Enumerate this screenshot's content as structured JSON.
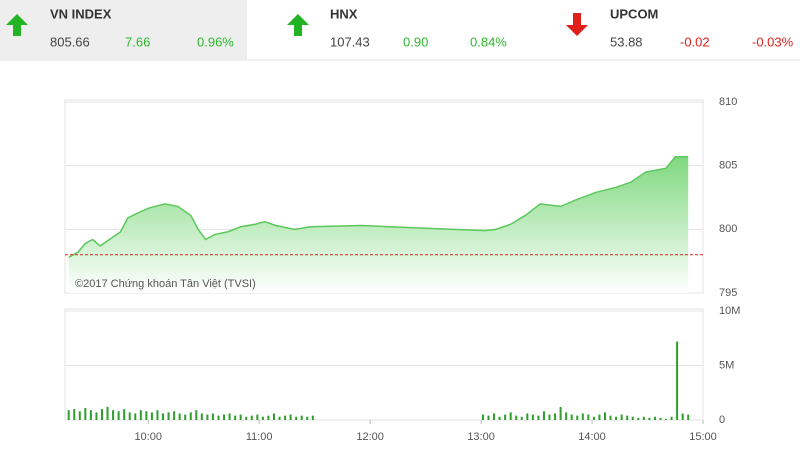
{
  "header": {
    "indices": [
      {
        "name": "VN INDEX",
        "value": "805.66",
        "change": "7.66",
        "percent": "0.96%",
        "direction": "up"
      },
      {
        "name": "HNX",
        "value": "107.43",
        "change": "0.90",
        "percent": "0.84%",
        "direction": "up"
      },
      {
        "name": "UPCOM",
        "value": "53.88",
        "change": "-0.02",
        "percent": "-0.03%",
        "direction": "down"
      }
    ]
  },
  "chart_data": [
    {
      "type": "area",
      "annotation": "©2017 Chứng khoán Tân Việt (TVSI)",
      "color": "#5cc85c",
      "reference_line": 798,
      "reference_color": "#d9261c",
      "x": [
        557,
        562,
        566,
        570,
        574,
        579,
        585,
        589,
        596,
        601,
        609,
        616,
        623,
        627,
        631,
        636,
        643,
        650,
        658,
        663,
        669,
        679,
        688,
        715,
        747,
        782,
        788,
        796,
        804,
        812,
        823,
        831,
        842,
        853,
        861,
        869,
        880,
        885,
        892
      ],
      "values": [
        797.8,
        798.2,
        798.9,
        799.2,
        798.7,
        799.2,
        799.8,
        800.9,
        801.4,
        801.7,
        802.0,
        801.8,
        801.1,
        800.0,
        799.2,
        799.6,
        799.8,
        800.2,
        800.4,
        800.6,
        800.3,
        800.0,
        800.2,
        800.3,
        800.1,
        799.9,
        800.0,
        800.4,
        801.1,
        802.0,
        801.8,
        802.3,
        802.9,
        803.3,
        803.7,
        804.5,
        804.8,
        805.7,
        805.7
      ],
      "xlim": [
        555,
        900
      ],
      "ylim": [
        795,
        810
      ],
      "yticks": [
        795,
        800,
        805,
        810
      ],
      "grid": true
    },
    {
      "type": "bar",
      "color": "#2e9e2e",
      "x": [
        557,
        560,
        563,
        566,
        569,
        572,
        575,
        578,
        581,
        584,
        587,
        590,
        593,
        596,
        599,
        602,
        605,
        608,
        611,
        614,
        617,
        620,
        623,
        626,
        629,
        632,
        635,
        638,
        641,
        644,
        647,
        650,
        653,
        656,
        659,
        662,
        665,
        668,
        671,
        674,
        677,
        680,
        683,
        686,
        689,
        781,
        784,
        787,
        790,
        793,
        796,
        799,
        802,
        805,
        808,
        811,
        814,
        817,
        820,
        823,
        826,
        829,
        832,
        835,
        838,
        841,
        844,
        847,
        850,
        853,
        856,
        859,
        862,
        865,
        868,
        871,
        874,
        877,
        880,
        883,
        886,
        889,
        892
      ],
      "values": [
        900000,
        1000000,
        800000,
        1100000,
        900000,
        700000,
        1000000,
        1200000,
        900000,
        800000,
        1000000,
        700000,
        600000,
        900000,
        800000,
        700000,
        900000,
        600000,
        700000,
        800000,
        600000,
        500000,
        700000,
        900000,
        600000,
        500000,
        600000,
        400000,
        500000,
        600000,
        400000,
        500000,
        300000,
        400000,
        500000,
        300000,
        400000,
        600000,
        300000,
        400000,
        500000,
        300000,
        400000,
        300000,
        400000,
        500000,
        400000,
        600000,
        300000,
        500000,
        700000,
        400000,
        300000,
        600000,
        500000,
        400000,
        800000,
        500000,
        600000,
        1200000,
        700000,
        500000,
        400000,
        600000,
        500000,
        300000,
        500000,
        700000,
        400000,
        300000,
        500000,
        400000,
        300000,
        200000,
        300000,
        200000,
        300000,
        200000,
        100000,
        300000,
        7200000,
        600000,
        500000
      ],
      "xlim": [
        555,
        900
      ],
      "ylim": [
        0,
        10000000
      ],
      "yticks": [
        0,
        {
          "value": 5000000,
          "label": "5M"
        },
        {
          "value": 10000000,
          "label": "10M"
        }
      ],
      "xticks": [
        {
          "value": 600,
          "label": "10:00"
        },
        {
          "value": 660,
          "label": "11:00"
        },
        {
          "value": 720,
          "label": "12:00"
        },
        {
          "value": 780,
          "label": "13:00"
        },
        {
          "value": 840,
          "label": "14:00"
        },
        {
          "value": 900,
          "label": "15:00"
        }
      ]
    }
  ]
}
